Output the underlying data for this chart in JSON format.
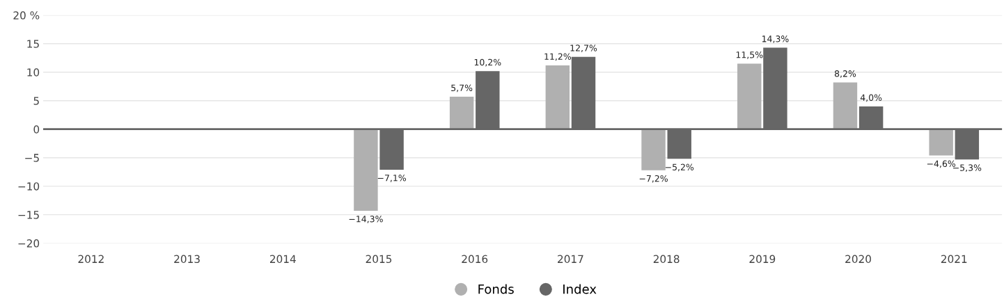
{
  "chart_data": {
    "type": "bar",
    "categories": [
      "2012",
      "2013",
      "2014",
      "2015",
      "2016",
      "2017",
      "2018",
      "2019",
      "2020",
      "2021"
    ],
    "series": [
      {
        "name": "Fonds",
        "color": "#b0b0b0",
        "values": [
          null,
          null,
          null,
          -14.3,
          5.7,
          11.2,
          -7.2,
          11.5,
          8.2,
          -4.6
        ],
        "value_labels": [
          null,
          null,
          null,
          "−14,3%",
          "5,7%",
          "11,2%",
          "−7,2%",
          "11,5%",
          "8,2%",
          "−4,6%"
        ]
      },
      {
        "name": "Index",
        "color": "#666666",
        "values": [
          null,
          null,
          null,
          -7.1,
          10.2,
          12.7,
          -5.2,
          14.3,
          4.0,
          -5.3
        ],
        "value_labels": [
          null,
          null,
          null,
          "−7,1%",
          "10,2%",
          "12,7%",
          "−5,2%",
          "14,3%",
          "4,0%",
          "−5,3%"
        ]
      }
    ],
    "ylim": [
      -20,
      20
    ],
    "yticks": [
      {
        "value": -20,
        "label": "−20"
      },
      {
        "value": -15,
        "label": "−15"
      },
      {
        "value": -10,
        "label": "−10"
      },
      {
        "value": -5,
        "label": "−5"
      },
      0,
      5,
      10,
      15,
      {
        "value": 20,
        "label": "20 %"
      }
    ],
    "ref_lines": [
      {
        "axis": "y",
        "value": 0,
        "color": "#666666"
      }
    ],
    "grid": "y",
    "legend": "bottom"
  }
}
